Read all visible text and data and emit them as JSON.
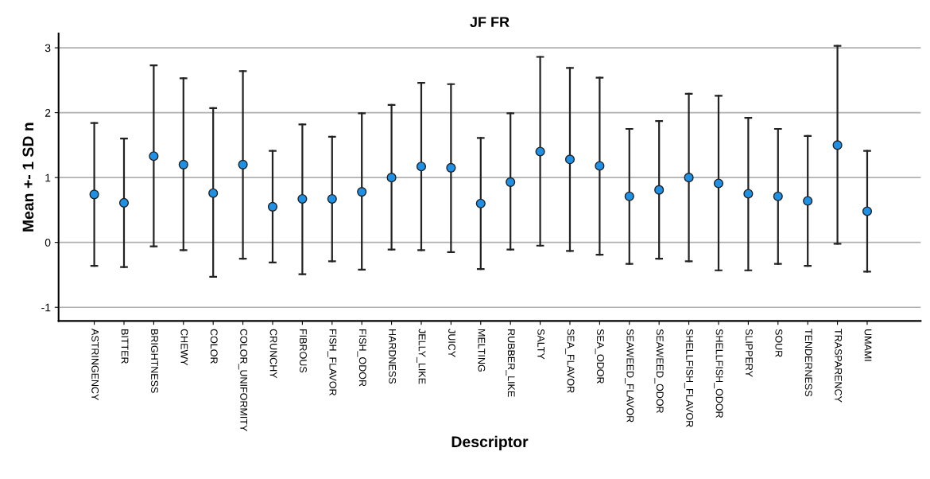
{
  "chart_data": {
    "type": "scatter",
    "title": "JF FR",
    "xlabel": "Descriptor",
    "ylabel": "Mean +- 1 SD n",
    "categories": [
      "ASTRINGENCY",
      "BITTER",
      "BRIGHTNESS",
      "CHEWY",
      "COLOR",
      "COLOR_UNIFORMITY",
      "CRUNCHY",
      "FIBROUS",
      "FISH_FLAVOR",
      "FISH_ODOR",
      "HARDNESS",
      "JELLY_LIKE",
      "JUICY",
      "MELTING",
      "RUBBER_LIKE",
      "SALTY",
      "SEA_FLAVOR",
      "SEA_ODOR",
      "SEAWEED_FLAVOR",
      "SEAWEED_ODOR",
      "SHELLFISH_FLAVOR",
      "SHELLFISH_ODOR",
      "SLIPPERY",
      "SOUR",
      "TENDERNESS",
      "TRASPARENCY",
      "UMAMI"
    ],
    "values": [
      0.74,
      0.61,
      1.33,
      1.2,
      0.76,
      1.2,
      0.55,
      0.67,
      0.67,
      0.78,
      1.0,
      1.17,
      1.15,
      0.6,
      0.93,
      1.4,
      1.28,
      1.18,
      0.71,
      0.81,
      1.0,
      0.91,
      0.75,
      0.71,
      0.64,
      1.5,
      0.48
    ],
    "errors": [
      [
        -0.36,
        1.84
      ],
      [
        -0.38,
        1.6
      ],
      [
        -0.06,
        2.73
      ],
      [
        -0.12,
        2.53
      ],
      [
        -0.53,
        2.07
      ],
      [
        -0.25,
        2.64
      ],
      [
        -0.31,
        1.41
      ],
      [
        -0.49,
        1.82
      ],
      [
        -0.29,
        1.63
      ],
      [
        -0.42,
        1.99
      ],
      [
        -0.11,
        2.12
      ],
      [
        -0.12,
        2.46
      ],
      [
        -0.15,
        2.44
      ],
      [
        -0.41,
        1.61
      ],
      [
        -0.11,
        1.99
      ],
      [
        -0.05,
        2.86
      ],
      [
        -0.13,
        2.69
      ],
      [
        -0.19,
        2.54
      ],
      [
        -0.33,
        1.75
      ],
      [
        -0.25,
        1.87
      ],
      [
        -0.29,
        2.29
      ],
      [
        -0.43,
        2.26
      ],
      [
        -0.43,
        1.92
      ],
      [
        -0.33,
        1.75
      ],
      [
        -0.36,
        1.64
      ],
      [
        -0.02,
        3.03
      ],
      [
        -0.45,
        1.41
      ]
    ],
    "color": "#1e90e6",
    "marker": "circle",
    "grid": "y",
    "ylim": [
      -1.21,
      3.22
    ],
    "yticks": [
      -1,
      0,
      1,
      2,
      3
    ]
  }
}
